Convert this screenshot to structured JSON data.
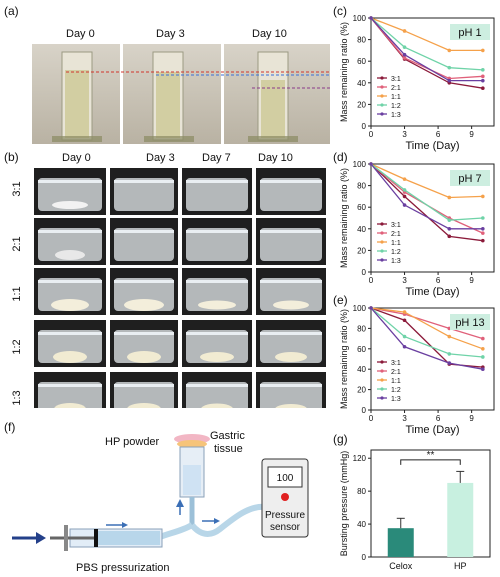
{
  "panels": {
    "a": {
      "label": "(a)",
      "days": [
        "Day 0",
        "Day 3",
        "Day 10"
      ]
    },
    "b": {
      "label": "(b)",
      "days": [
        "Day 0",
        "Day 3",
        "Day 7",
        "Day 10"
      ],
      "ratios": [
        "3:1",
        "2:1",
        "1:1",
        "1:2",
        "1:3"
      ]
    },
    "c": {
      "label": "(c)"
    },
    "d": {
      "label": "(d)"
    },
    "e": {
      "label": "(e)"
    },
    "f": {
      "label": "(f)",
      "hp_powder": "HP powder",
      "gastric_tissue": "Gastric\ntissue",
      "gastric_line1": "Gastric",
      "gastric_line2": "tissue",
      "pbs": "PBS pressurization",
      "gauge_value": "100",
      "sensor_line1": "Pressure",
      "sensor_line2": "sensor"
    },
    "g": {
      "label": "(g)"
    }
  },
  "colors": {
    "r31": "#8b1a3a",
    "r21": "#e0607a",
    "r11": "#f5a14a",
    "r12": "#6fd3a8",
    "r13": "#6a3fa0",
    "celox": "#2a8a7a",
    "hp": "#c8f0e0",
    "phbox": "#cdeee0"
  },
  "chart_data": [
    {
      "type": "line",
      "panel": "c",
      "badge": "pH 1",
      "xlabel": "Time (Day)",
      "ylabel": "Mass remaining ratio (%)",
      "x": [
        0,
        3,
        7,
        10
      ],
      "xlim": [
        0,
        11
      ],
      "ylim": [
        0,
        100
      ],
      "xticks": [
        0,
        3,
        6,
        9
      ],
      "yticks": [
        0,
        20,
        40,
        60,
        80,
        100
      ],
      "series": [
        {
          "name": "3:1",
          "values": [
            100,
            62,
            40,
            35
          ]
        },
        {
          "name": "2:1",
          "values": [
            100,
            63,
            44,
            46
          ]
        },
        {
          "name": "1:1",
          "values": [
            100,
            88,
            70,
            70
          ]
        },
        {
          "name": "1:2",
          "values": [
            100,
            73,
            54,
            52
          ]
        },
        {
          "name": "1:3",
          "values": [
            100,
            66,
            42,
            42
          ]
        }
      ]
    },
    {
      "type": "line",
      "panel": "d",
      "badge": "pH 7",
      "xlabel": "Time (Day)",
      "ylabel": "Mass remaining ratio (%)",
      "x": [
        0,
        3,
        7,
        10
      ],
      "xlim": [
        0,
        11
      ],
      "ylim": [
        0,
        100
      ],
      "xticks": [
        0,
        3,
        6,
        9
      ],
      "yticks": [
        0,
        20,
        40,
        60,
        80,
        100
      ],
      "series": [
        {
          "name": "3:1",
          "values": [
            100,
            70,
            33,
            29
          ]
        },
        {
          "name": "2:1",
          "values": [
            100,
            74,
            50,
            36
          ]
        },
        {
          "name": "1:1",
          "values": [
            100,
            86,
            69,
            70
          ]
        },
        {
          "name": "1:2",
          "values": [
            100,
            76,
            48,
            50
          ]
        },
        {
          "name": "1:3",
          "values": [
            100,
            62,
            40,
            40
          ]
        }
      ]
    },
    {
      "type": "line",
      "panel": "e",
      "badge": "pH 13",
      "xlabel": "Time (Day)",
      "ylabel": "Mass remaining ratio (%)",
      "x": [
        0,
        3,
        7,
        10
      ],
      "xlim": [
        0,
        11
      ],
      "ylim": [
        0,
        100
      ],
      "xticks": [
        0,
        3,
        6,
        9
      ],
      "yticks": [
        0,
        20,
        40,
        60,
        80,
        100
      ],
      "series": [
        {
          "name": "3:1",
          "values": [
            100,
            88,
            45,
            42
          ]
        },
        {
          "name": "2:1",
          "values": [
            100,
            94,
            80,
            70
          ]
        },
        {
          "name": "1:1",
          "values": [
            100,
            96,
            72,
            60
          ]
        },
        {
          "name": "1:2",
          "values": [
            100,
            72,
            55,
            52
          ]
        },
        {
          "name": "1:3",
          "values": [
            100,
            62,
            46,
            40
          ]
        }
      ]
    },
    {
      "type": "bar",
      "panel": "g",
      "ylabel": "Bursting pressure (mmHg)",
      "categories": [
        "Celox",
        "HP"
      ],
      "values": [
        35,
        90
      ],
      "errors": [
        12,
        14
      ],
      "ylim": [
        0,
        130
      ],
      "yticks": [
        0,
        40,
        80,
        120
      ],
      "significance": "**"
    }
  ]
}
